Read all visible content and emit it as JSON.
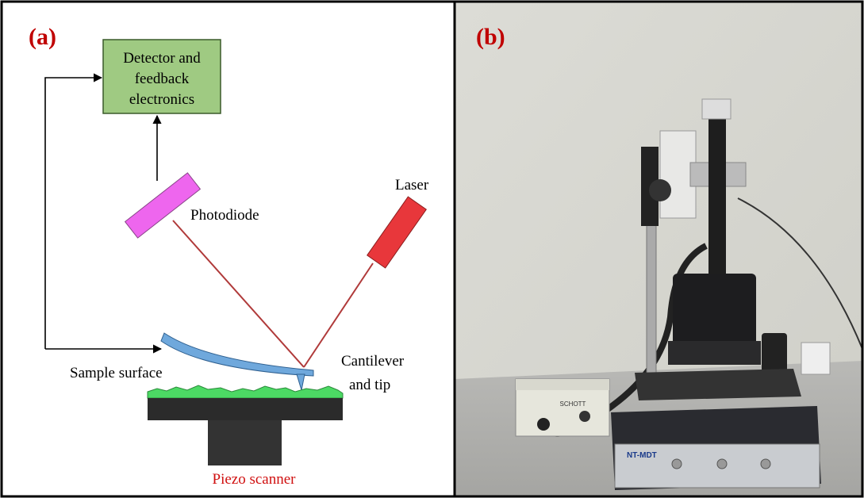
{
  "panel_a": {
    "label": "(a)",
    "detector_box": {
      "lines": [
        "Detector and",
        "feedback",
        "electronics"
      ]
    },
    "photodiode": "Photodiode",
    "laser": "Laser",
    "cantilever": {
      "lines": [
        "Cantilever",
        "and tip"
      ]
    },
    "sample_surface": "Sample surface",
    "piezo_scanner": "Piezo scanner"
  },
  "panel_b": {
    "label": "(b)",
    "lamp_brand": "SCHOTT",
    "controller_brand": "NT-MDT"
  }
}
